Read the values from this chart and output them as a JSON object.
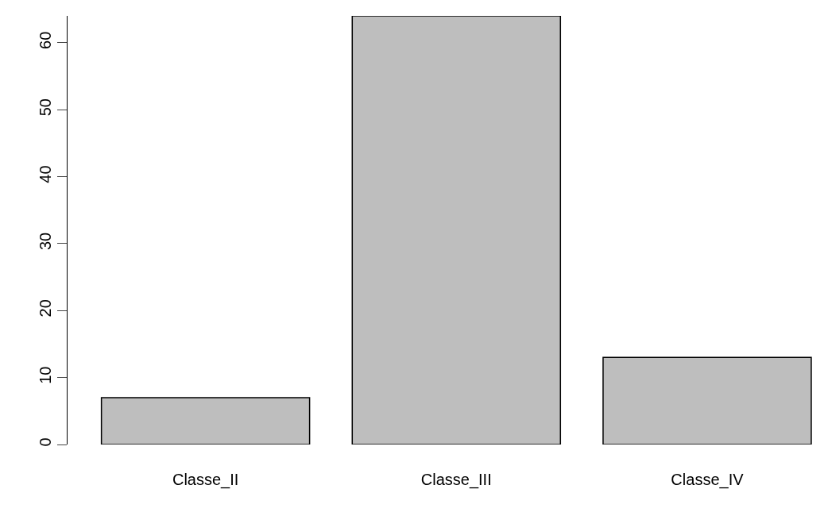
{
  "chart_data": {
    "type": "bar",
    "categories": [
      "Classe_II",
      "Classe_III",
      "Classe_IV"
    ],
    "values": [
      7,
      64,
      13
    ],
    "color": "#bebebe",
    "ylim": [
      0,
      64
    ],
    "yticks": [
      0,
      10,
      20,
      30,
      40,
      50,
      60
    ]
  }
}
